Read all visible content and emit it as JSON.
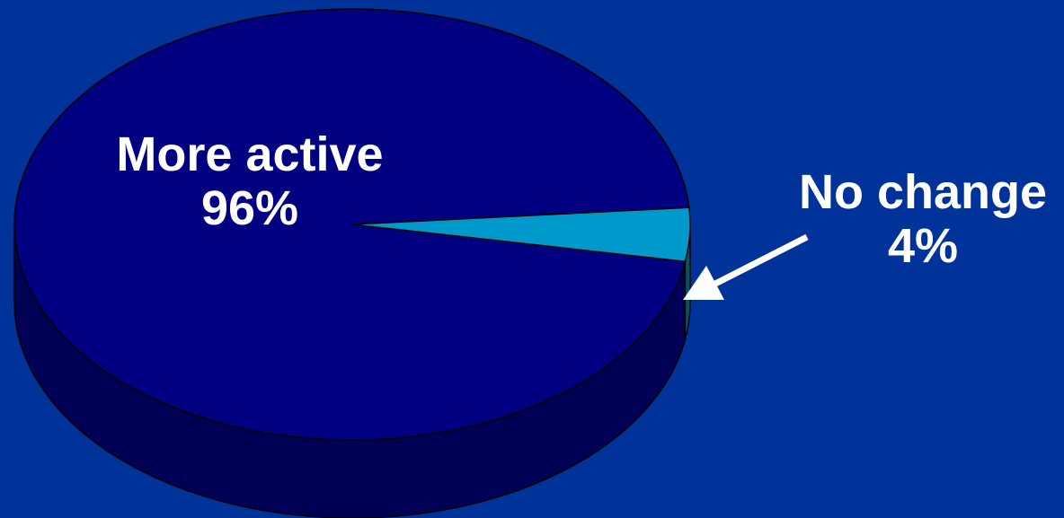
{
  "chart_data": {
    "type": "pie",
    "style": "3d",
    "slices": [
      {
        "name": "More active",
        "value": 96,
        "value_label": "96%",
        "color": "#000080",
        "side_color": "#000055"
      },
      {
        "name": "No change",
        "value": 4,
        "value_label": "4%",
        "color": "#0099CC",
        "side_color": "#005566"
      }
    ],
    "background": "#003399",
    "legend": "none"
  }
}
